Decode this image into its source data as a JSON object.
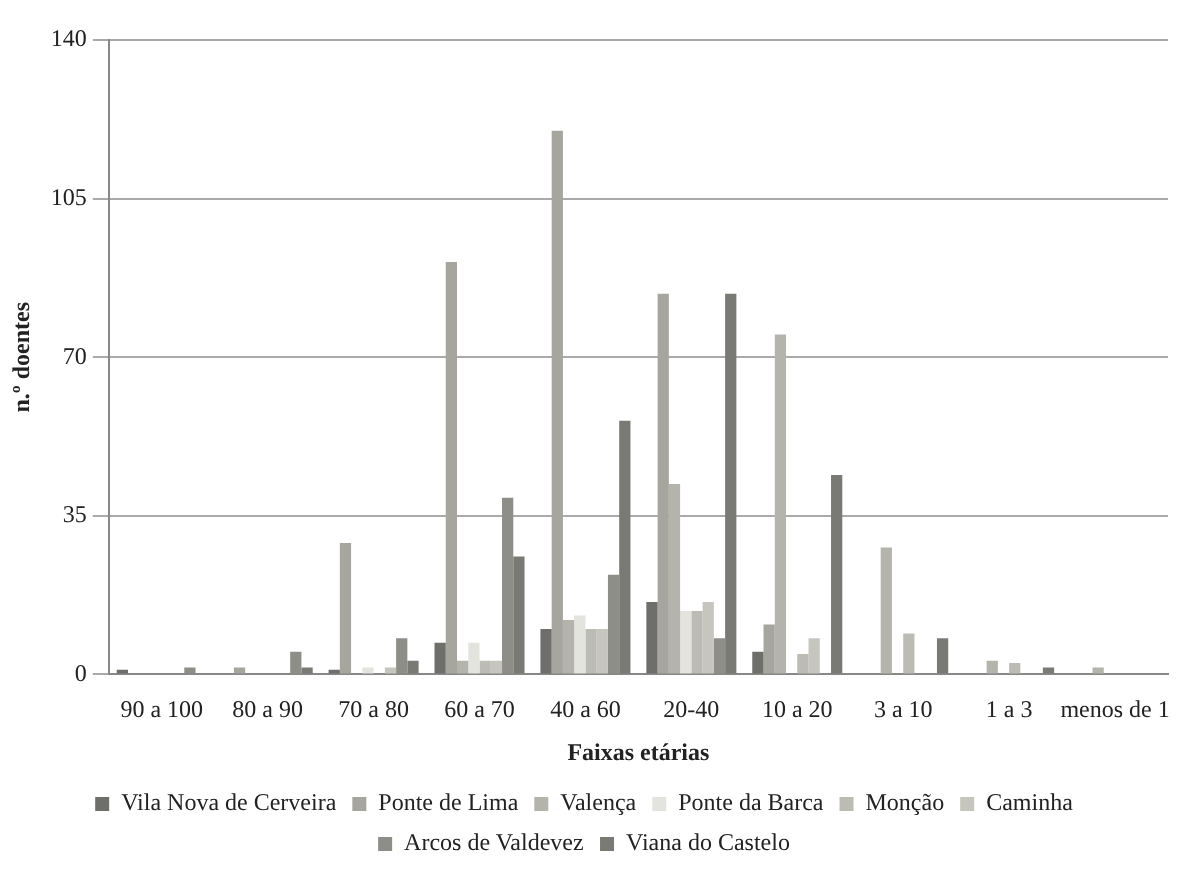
{
  "chart_data": {
    "type": "bar",
    "xlabel": "Faixas etárias",
    "ylabel": "n.º doentes",
    "categories": [
      "90 a 100",
      "80 a 90",
      "70 a 80",
      "60 a 70",
      "40 a 60",
      "20-40",
      "10 a 20",
      "3 a 10",
      "1 a 3",
      "menos de 1"
    ],
    "series": [
      {
        "name": "Vila Nova de Cerveira",
        "color": "#6e6e6a",
        "values": [
          1,
          0,
          1,
          7,
          10,
          16,
          5,
          0,
          0,
          0
        ]
      },
      {
        "name": "Ponte de Lima",
        "color": "#a6a69e",
        "values": [
          0,
          1.5,
          29,
          91,
          120,
          84,
          11,
          0,
          0,
          0
        ]
      },
      {
        "name": "Valença",
        "color": "#b4b4ac",
        "values": [
          0,
          0,
          0,
          3,
          12,
          42,
          75,
          28,
          3,
          1.5
        ]
      },
      {
        "name": "Ponte da Barca",
        "color": "#e4e4de",
        "values": [
          0,
          0,
          1.5,
          7,
          13,
          14,
          0,
          0,
          0,
          0
        ]
      },
      {
        "name": "Monção",
        "color": "#bcbcb4",
        "values": [
          0,
          0,
          0,
          3,
          10,
          14,
          4.5,
          9,
          2.5,
          0
        ]
      },
      {
        "name": "Caminha",
        "color": "#c6c6be",
        "values": [
          0,
          0,
          1.5,
          3,
          10,
          16,
          8,
          0,
          0,
          0
        ]
      },
      {
        "name": "Arcos de Valdevez",
        "color": "#8e8e88",
        "values": [
          1.5,
          5,
          8,
          39,
          22,
          8,
          0,
          0,
          0,
          0
        ]
      },
      {
        "name": "Viana do Castelo",
        "color": "#7a7a74",
        "values": [
          0,
          1.5,
          3,
          26,
          56,
          84,
          44,
          8,
          1.5,
          0
        ]
      }
    ],
    "ylim": [
      0,
      140
    ],
    "yticks": [
      0,
      35,
      70,
      105,
      140
    ],
    "grid": "y",
    "legend": "bottom"
  }
}
